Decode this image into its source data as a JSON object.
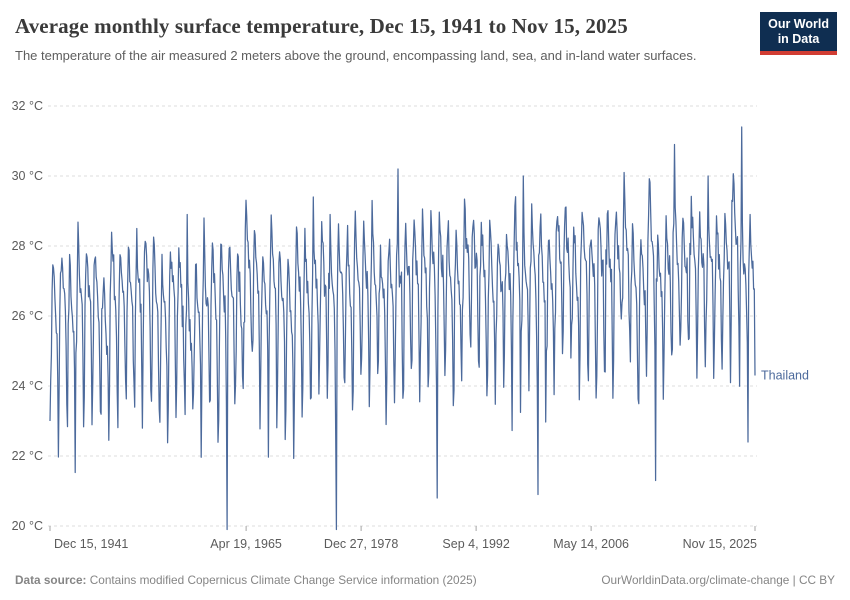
{
  "header": {
    "title": "Average monthly surface temperature, Dec 15, 1941 to Nov 15, 2025",
    "subtitle": "The temperature of the air measured 2 meters above the ground, encompassing land, sea, and in-land water surfaces.",
    "logo": {
      "line1": "Our World",
      "line2": "in Data"
    }
  },
  "footer": {
    "source_label": "Data source:",
    "source_text": "Contains modified Copernicus Climate Change Service information (2025)",
    "right_text": "OurWorldinData.org/climate-change | CC BY"
  },
  "colors": {
    "line": "#4c6a9c",
    "entity_label": "#4c6a9c",
    "grid": "#dcdcdc",
    "axis_text": "#5b5b5b",
    "tick_mark": "#a5a5a5",
    "logo_bg": "#0f2e51",
    "logo_stripe": "#d13d33"
  },
  "chart_data": {
    "type": "line",
    "title": "Average monthly surface temperature, Dec 15, 1941 to Nov 15, 2025",
    "entity_label": "Thailand",
    "unit": "°C",
    "y_tick_suffix": " °C",
    "grid": true,
    "legend_position": "right-of-line",
    "x_domain": [
      1941.956,
      2025.874
    ],
    "y_domain": [
      20,
      32
    ],
    "y_ticks": [
      20,
      22,
      24,
      26,
      28,
      30,
      32
    ],
    "x_ticks": [
      {
        "label": "Dec 15, 1941",
        "t": 1941.956
      },
      {
        "label": "Apr 19, 1965",
        "t": 1965.299
      },
      {
        "label": "Dec 27, 1978",
        "t": 1978.989
      },
      {
        "label": "Sep 4, 1992",
        "t": 1992.678
      },
      {
        "label": "May 14, 2006",
        "t": 2006.367
      },
      {
        "label": "Nov 15, 2025",
        "t": 2025.874
      }
    ],
    "series": [
      {
        "name": "Thailand",
        "cadence": "monthly",
        "start": "1941-12",
        "end": "2025-11",
        "monthly_climatology": [
          23.6,
          25.3,
          26.8,
          27.7,
          27.4,
          26.9,
          26.5,
          26.3,
          26.1,
          25.8,
          24.6,
          22.7
        ],
        "warming_trend_c": 1.4,
        "winter_extra_trend_c": 0.5,
        "interannual_sd": 0.35,
        "monthly_sd": 0.28,
        "winter_monthly_sd": 0.6,
        "value_min": 19.8,
        "value_max": 31.5,
        "seed": 1942,
        "notable_points": [
          {
            "date": "1941-12",
            "value": 23.0
          },
          {
            "date": "1952-04",
            "value": 28.5
          },
          {
            "date": "1958-04",
            "value": 28.9
          },
          {
            "date": "1960-04",
            "value": 28.8
          },
          {
            "date": "1963-01",
            "value": 19.9
          },
          {
            "date": "1973-04",
            "value": 29.4
          },
          {
            "date": "1975-04",
            "value": 28.9
          },
          {
            "date": "1976-01",
            "value": 19.9
          },
          {
            "date": "1980-04",
            "value": 29.3
          },
          {
            "date": "1983-05",
            "value": 30.2
          },
          {
            "date": "1988-01",
            "value": 20.8
          },
          {
            "date": "1998-04",
            "value": 30.0
          },
          {
            "date": "2000-01",
            "value": 20.9
          },
          {
            "date": "2010-04",
            "value": 30.1
          },
          {
            "date": "2014-01",
            "value": 21.3
          },
          {
            "date": "2016-04",
            "value": 30.9
          },
          {
            "date": "2020-04",
            "value": 30.0
          },
          {
            "date": "2024-04",
            "value": 31.4
          },
          {
            "date": "2025-01",
            "value": 22.4
          },
          {
            "date": "2025-11",
            "value": 24.3
          }
        ]
      }
    ]
  }
}
